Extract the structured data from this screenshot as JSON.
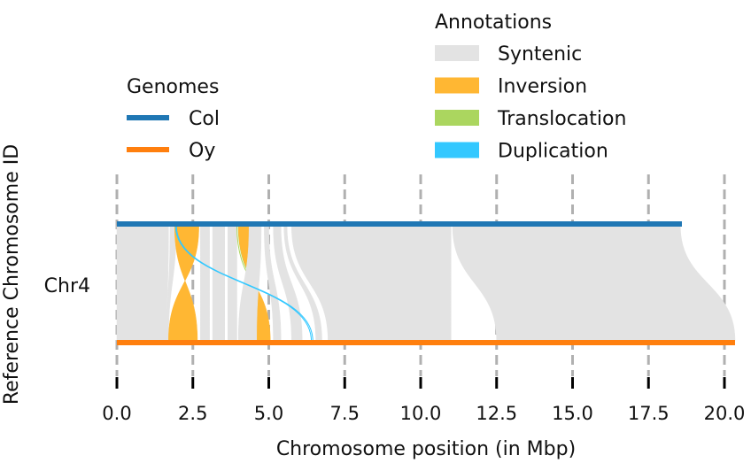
{
  "chart_data": {
    "type": "synteny",
    "xlabel": "Chromosome position (in Mbp)",
    "ylabel": "Reference Chromosome ID",
    "chromosome": "Chr4",
    "xlim": [
      0,
      20.5
    ],
    "xticks": [
      {
        "value": 0.0,
        "label": "0.0"
      },
      {
        "value": 2.5,
        "label": "2.5"
      },
      {
        "value": 5.0,
        "label": "5.0"
      },
      {
        "value": 7.5,
        "label": "7.5"
      },
      {
        "value": 10.0,
        "label": "10.0"
      },
      {
        "value": 12.5,
        "label": "12.5"
      },
      {
        "value": 15.0,
        "label": "15.0"
      },
      {
        "value": 17.5,
        "label": "17.5"
      },
      {
        "value": 20.0,
        "label": "20.0"
      }
    ],
    "genomes": [
      {
        "name": "Col",
        "color": "#1f77b4",
        "length": 18.6
      },
      {
        "name": "Oy",
        "color": "#ff7f0e",
        "length": 20.35
      }
    ],
    "genomes_legend_title": "Genomes",
    "annotation_types": [
      {
        "name": "Syntenic",
        "color": "#e3e3e3"
      },
      {
        "name": "Inversion",
        "color": "#ffb733"
      },
      {
        "name": "Translocation",
        "color": "#abd65f"
      },
      {
        "name": "Duplication",
        "color": "#33c8ff"
      }
    ],
    "annotations_legend_title": "Annotations",
    "alignments": [
      {
        "type": "Syntenic",
        "ref": [
          0.0,
          1.7
        ],
        "qry": [
          0.0,
          1.65
        ]
      },
      {
        "type": "Syntenic",
        "ref": [
          1.75,
          1.95
        ],
        "qry": [
          1.65,
          1.7
        ]
      },
      {
        "type": "Inversion",
        "ref": [
          1.9,
          2.7
        ],
        "qry": [
          1.7,
          2.65
        ]
      },
      {
        "type": "Syntenic",
        "ref": [
          2.75,
          3.05
        ],
        "qry": [
          2.75,
          3.05
        ]
      },
      {
        "type": "Syntenic",
        "ref": [
          3.15,
          3.55
        ],
        "qry": [
          3.15,
          3.55
        ]
      },
      {
        "type": "Syntenic",
        "ref": [
          3.65,
          3.95
        ],
        "qry": [
          3.65,
          3.95
        ]
      },
      {
        "type": "Translocation",
        "ref": [
          3.95,
          4.0
        ],
        "qry": [
          4.95,
          5.0
        ]
      },
      {
        "type": "Inversion",
        "ref": [
          4.0,
          4.35
        ],
        "qry": [
          4.6,
          5.05
        ]
      },
      {
        "type": "Syntenic",
        "ref": [
          4.35,
          4.75
        ],
        "qry": [
          4.0,
          4.6
        ]
      },
      {
        "type": "Syntenic",
        "ref": [
          4.85,
          5.0
        ],
        "qry": [
          5.15,
          5.4
        ]
      },
      {
        "type": "Syntenic",
        "ref": [
          5.15,
          5.4
        ],
        "qry": [
          5.75,
          6.1
        ]
      },
      {
        "type": "Duplication",
        "ref": [
          1.93,
          1.96
        ],
        "qry": [
          6.4,
          6.45
        ]
      },
      {
        "type": "Syntenic",
        "ref": [
          5.5,
          5.6
        ],
        "qry": [
          6.55,
          6.75
        ]
      },
      {
        "type": "Syntenic",
        "ref": [
          5.75,
          11.0
        ],
        "qry": [
          6.95,
          11.0
        ]
      },
      {
        "type": "Syntenic",
        "ref": [
          11.05,
          18.55
        ],
        "qry": [
          12.5,
          20.35
        ]
      }
    ]
  }
}
